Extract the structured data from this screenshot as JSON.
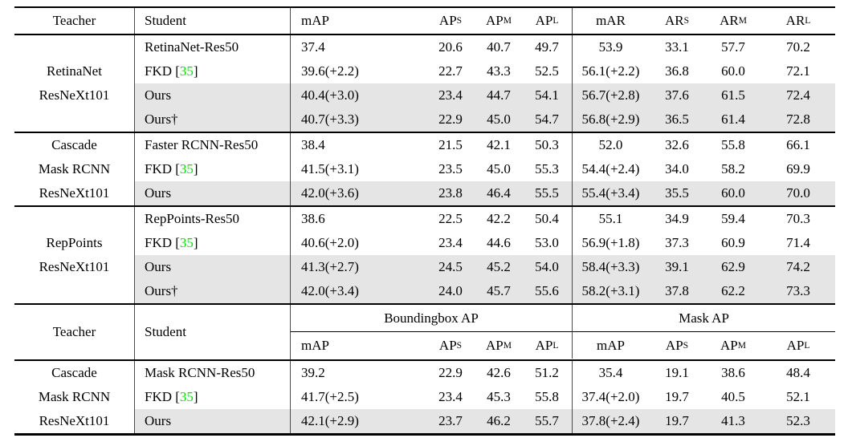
{
  "colors": {
    "highlight": "#e5e5e5",
    "citation": "#00e000",
    "rule": "#000000"
  },
  "header1": {
    "teacher": "Teacher",
    "student": "Student",
    "metrics": [
      {
        "base": "mAP",
        "sub": ""
      },
      {
        "base": "AP",
        "sub": "S"
      },
      {
        "base": "AP",
        "sub": "M"
      },
      {
        "base": "AP",
        "sub": "L"
      },
      {
        "base": "mAR",
        "sub": ""
      },
      {
        "base": "AR",
        "sub": "S"
      },
      {
        "base": "AR",
        "sub": "M"
      },
      {
        "base": "AR",
        "sub": "L"
      }
    ]
  },
  "header2": {
    "teacher": "Teacher",
    "student": "Student",
    "groups": [
      {
        "label": "Boundingbox AP"
      },
      {
        "label": "Mask AP"
      }
    ],
    "metrics": [
      {
        "base": "mAP",
        "sub": ""
      },
      {
        "base": "AP",
        "sub": "S"
      },
      {
        "base": "AP",
        "sub": "M"
      },
      {
        "base": "AP",
        "sub": "L"
      },
      {
        "base": "mAP",
        "sub": ""
      },
      {
        "base": "AP",
        "sub": "S"
      },
      {
        "base": "AP",
        "sub": "M"
      },
      {
        "base": "AP",
        "sub": "L"
      }
    ]
  },
  "blocks": [
    {
      "teacher_lines": [
        "RetinaNet",
        "ResNeXt101"
      ],
      "rows": [
        {
          "student": "RetinaNet-Res50",
          "values": [
            "37.4",
            "20.6",
            "40.7",
            "49.7",
            "53.9",
            "33.1",
            "57.7",
            "70.2"
          ]
        },
        {
          "student": "FKD [",
          "cite": "35",
          "cite_suffix": "]",
          "values": [
            "39.6(+2.2)",
            "22.7",
            "43.3",
            "52.5",
            "56.1(+2.2)",
            "36.8",
            "60.0",
            "72.1"
          ]
        },
        {
          "student": "Ours",
          "values": [
            "40.4(+3.0)",
            "23.4",
            "44.7",
            "54.1",
            "56.7(+2.8)",
            "37.6",
            "61.5",
            "72.4"
          ]
        },
        {
          "student": "Ours†",
          "values": [
            "40.7(+3.3)",
            "22.9",
            "45.0",
            "54.7",
            "56.8(+2.9)",
            "36.5",
            "61.4",
            "72.8"
          ]
        }
      ]
    },
    {
      "teacher_lines": [
        "Cascade",
        "Mask RCNN",
        "ResNeXt101"
      ],
      "rows": [
        {
          "student": "Faster RCNN-Res50",
          "values": [
            "38.4",
            "21.5",
            "42.1",
            "50.3",
            "52.0",
            "32.6",
            "55.8",
            "66.1"
          ]
        },
        {
          "student": "FKD [",
          "cite": "35",
          "cite_suffix": "]",
          "values": [
            "41.5(+3.1)",
            "23.5",
            "45.0",
            "55.3",
            "54.4(+2.4)",
            "34.0",
            "58.2",
            "69.9"
          ]
        },
        {
          "student": "Ours",
          "values": [
            "42.0(+3.6)",
            "23.8",
            "46.4",
            "55.5",
            "55.4(+3.4)",
            "35.5",
            "60.0",
            "70.0"
          ]
        }
      ]
    },
    {
      "teacher_lines": [
        "RepPoints",
        "ResNeXt101"
      ],
      "rows": [
        {
          "student": "RepPoints-Res50",
          "values": [
            "38.6",
            "22.5",
            "42.2",
            "50.4",
            "55.1",
            "34.9",
            "59.4",
            "70.3"
          ]
        },
        {
          "student": "FKD [",
          "cite": "35",
          "cite_suffix": "]",
          "values": [
            "40.6(+2.0)",
            "23.4",
            "44.6",
            "53.0",
            "56.9(+1.8)",
            "37.3",
            "60.9",
            "71.4"
          ]
        },
        {
          "student": "Ours",
          "values": [
            "41.3(+2.7)",
            "24.5",
            "45.2",
            "54.0",
            "58.4(+3.3)",
            "39.1",
            "62.9",
            "74.2"
          ]
        },
        {
          "student": "Ours†",
          "values": [
            "42.0(+3.4)",
            "24.0",
            "45.7",
            "55.6",
            "58.2(+3.1)",
            "37.8",
            "62.2",
            "73.3"
          ]
        }
      ]
    },
    {
      "teacher_lines": [
        "Cascade",
        "Mask RCNN",
        "ResNeXt101"
      ],
      "rows": [
        {
          "student": "Mask RCNN-Res50",
          "values": [
            "39.2",
            "22.9",
            "42.6",
            "51.2",
            "35.4",
            "19.1",
            "38.6",
            "48.4"
          ]
        },
        {
          "student": "FKD [",
          "cite": "35",
          "cite_suffix": "]",
          "values": [
            "41.7(+2.5)",
            "23.4",
            "45.3",
            "55.8",
            "37.4(+2.0)",
            "19.7",
            "40.5",
            "52.1"
          ]
        },
        {
          "student": "Ours",
          "values": [
            "42.1(+2.9)",
            "23.7",
            "46.2",
            "55.7",
            "37.8(+2.4)",
            "19.7",
            "41.3",
            "52.3"
          ]
        }
      ]
    }
  ]
}
